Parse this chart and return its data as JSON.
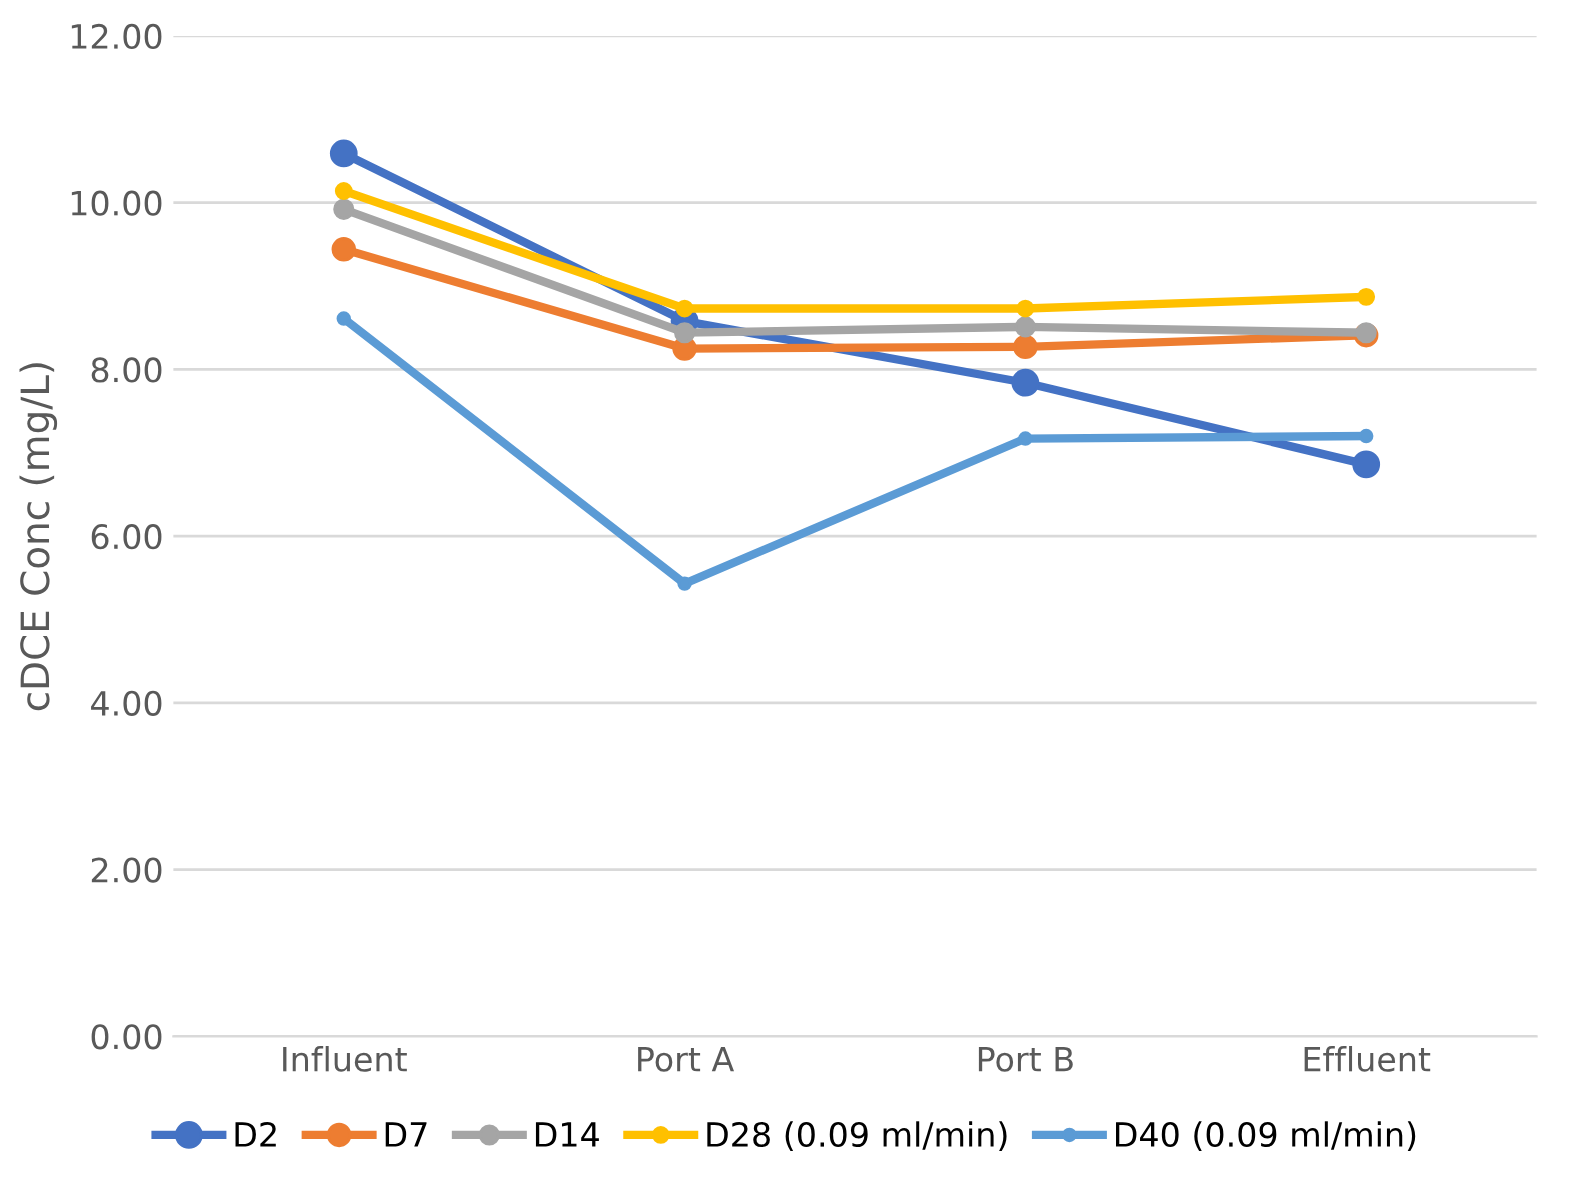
{
  "chart_data": {
    "type": "line",
    "ylabel": "cDCE Conc (mg/L)",
    "categories": [
      "Influent",
      "Port A",
      "Port B",
      "Effluent"
    ],
    "series": [
      {
        "name": "D2",
        "color": "#4472c4",
        "values": [
          10.59,
          8.58,
          7.84,
          6.86
        ]
      },
      {
        "name": "D7",
        "color": "#ed7d31",
        "values": [
          9.44,
          8.25,
          8.27,
          8.41
        ]
      },
      {
        "name": "D14",
        "color": "#a5a5a5",
        "values": [
          9.92,
          8.44,
          8.51,
          8.44
        ]
      },
      {
        "name": "D28 (0.09 ml/min)",
        "color": "#ffc000",
        "values": [
          10.14,
          8.73,
          8.73,
          8.87
        ]
      },
      {
        "name": "D40 (0.09 ml/min)",
        "color": "#5b9bd5",
        "values": [
          8.61,
          5.43,
          7.17,
          7.2
        ]
      }
    ],
    "ylim": [
      0,
      12
    ],
    "yticks": [
      {
        "value": 0,
        "label": "0.00"
      },
      {
        "value": 2,
        "label": "2.00"
      },
      {
        "value": 4,
        "label": "4.00"
      },
      {
        "value": 6,
        "label": "6.00"
      },
      {
        "value": 8,
        "label": "8.00"
      },
      {
        "value": 10,
        "label": "10.00"
      },
      {
        "value": 12,
        "label": "12.00"
      }
    ],
    "grid": "y",
    "legend": "bottom",
    "marker": "circle",
    "line_style": "solid"
  }
}
